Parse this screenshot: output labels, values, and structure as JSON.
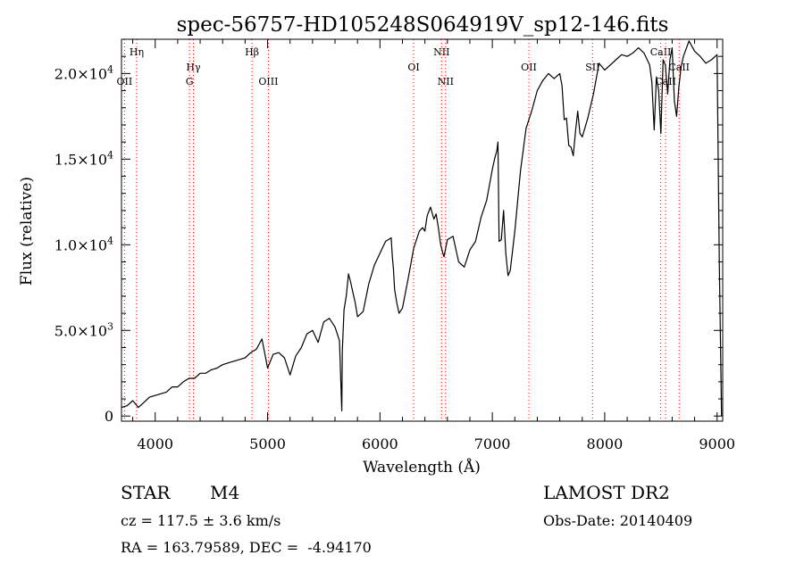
{
  "chart_data": {
    "type": "line",
    "title": "spec-56757-HD105248S064919V_sp12-146.fits",
    "xlabel": "Wavelength (Å)",
    "ylabel": "Flux (relative)",
    "xlim": [
      3700,
      9050
    ],
    "ylim": [
      -300,
      22000
    ],
    "x_ticks": [
      {
        "value": 4000,
        "label": "4000"
      },
      {
        "value": 5000,
        "label": "5000"
      },
      {
        "value": 6000,
        "label": "6000"
      },
      {
        "value": 7000,
        "label": "7000"
      },
      {
        "value": 8000,
        "label": "8000"
      },
      {
        "value": 9000,
        "label": "9000"
      }
    ],
    "y_ticks": [
      {
        "value": 0,
        "mantissa": "0",
        "exponent": ""
      },
      {
        "value": 5000,
        "mantissa": "5.0×10",
        "exponent": "3"
      },
      {
        "value": 10000,
        "mantissa": "1.0×10",
        "exponent": "4"
      },
      {
        "value": 15000,
        "mantissa": "1.5×10",
        "exponent": "4"
      },
      {
        "value": 20000,
        "mantissa": "2.0×10",
        "exponent": "4"
      }
    ],
    "line_color": "#000000",
    "marker_color": "#ff0000",
    "spectral_lines": [
      {
        "label": "Hη",
        "x": 3835,
        "row": "top"
      },
      {
        "label": "OII",
        "x": 3727,
        "row": "mid"
      },
      {
        "label": "Hγ",
        "x": 4340,
        "row": "top2"
      },
      {
        "label": "G",
        "x": 4305,
        "row": "mid"
      },
      {
        "label": "Hβ",
        "x": 4861,
        "row": "top"
      },
      {
        "label": "OIII",
        "x": 5007,
        "row": "mid"
      },
      {
        "label": "OI",
        "x": 6300,
        "row": "top2"
      },
      {
        "label": "NII",
        "x": 6548,
        "row": "top"
      },
      {
        "label": "NII",
        "x": 6584,
        "row": "mid"
      },
      {
        "label": "OII",
        "x": 7325,
        "row": "top2"
      },
      {
        "label": "SII",
        "x": 7892,
        "row": "top2"
      },
      {
        "label": "CaII",
        "x": 8498,
        "row": "top"
      },
      {
        "label": "CaII",
        "x": 8542,
        "row": "mid"
      },
      {
        "label": "CaII",
        "x": 8662,
        "row": "top2"
      }
    ],
    "series": [
      {
        "x": [
          3700,
          3750,
          3800,
          3850,
          3900,
          3950,
          4000,
          4050,
          4100,
          4150,
          4200,
          4250,
          4300,
          4350,
          4400,
          4450,
          4500,
          4550,
          4600,
          4650,
          4700,
          4750,
          4800,
          4850,
          4900,
          4950,
          4980,
          5000,
          5050,
          5100,
          5150,
          5200,
          5250,
          5300,
          5350,
          5400,
          5450,
          5500,
          5550,
          5600,
          5620,
          5640,
          5660,
          5665,
          5680,
          5700,
          5720,
          5740,
          5760,
          5780,
          5800,
          5850,
          5900,
          5950,
          6000,
          6050,
          6100,
          6110,
          6120,
          6130,
          6150,
          6170,
          6200,
          6250,
          6300,
          6350,
          6380,
          6400,
          6420,
          6450,
          6480,
          6500,
          6520,
          6540,
          6560,
          6570,
          6600,
          6650,
          6700,
          6750,
          6800,
          6850,
          6900,
          6950,
          7000,
          7020,
          7040,
          7050,
          7060,
          7080,
          7100,
          7120,
          7140,
          7160,
          7200,
          7250,
          7300,
          7350,
          7400,
          7450,
          7500,
          7550,
          7600,
          7620,
          7640,
          7660,
          7680,
          7700,
          7720,
          7740,
          7760,
          7780,
          7800,
          7850,
          7900,
          7950,
          8000,
          8050,
          8100,
          8150,
          8200,
          8250,
          8300,
          8350,
          8400,
          8420,
          8440,
          8460,
          8480,
          8500,
          8520,
          8540,
          8560,
          8580,
          8600,
          8620,
          8640,
          8660,
          8680,
          8700,
          8750,
          8800,
          8850,
          8900,
          8950,
          9000,
          9020,
          9040
        ],
        "y": [
          500,
          600,
          900,
          500,
          800,
          1100,
          1200,
          1300,
          1400,
          1700,
          1700,
          2000,
          2200,
          2200,
          2500,
          2500,
          2700,
          2800,
          3000,
          3100,
          3200,
          3300,
          3400,
          3700,
          3900,
          4500,
          3500,
          2800,
          3600,
          3700,
          3400,
          2400,
          3500,
          4000,
          4800,
          5000,
          4300,
          5500,
          5700,
          5200,
          4800,
          4400,
          300,
          3800,
          6200,
          7000,
          8300,
          7800,
          7200,
          6600,
          5800,
          6100,
          7700,
          8800,
          9500,
          10200,
          10400,
          9300,
          8600,
          7400,
          6600,
          6000,
          6300,
          8000,
          9800,
          10800,
          11000,
          10800,
          11700,
          12200,
          11500,
          11800,
          11000,
          10000,
          9500,
          9300,
          10300,
          10500,
          9000,
          8700,
          9700,
          10200,
          11600,
          12600,
          14400,
          15000,
          15500,
          16000,
          10200,
          10300,
          12000,
          9500,
          8200,
          8500,
          10800,
          14300,
          16800,
          17800,
          19000,
          19600,
          20000,
          19700,
          20000,
          19300,
          17300,
          17400,
          15800,
          15700,
          15200,
          16600,
          17800,
          16500,
          16300,
          17400,
          18800,
          20600,
          20200,
          20500,
          20800,
          21100,
          21000,
          21200,
          21500,
          21200,
          20500,
          19500,
          16700,
          19800,
          19000,
          16500,
          20800,
          20500,
          18800,
          20800,
          21500,
          18400,
          17500,
          19200,
          20400,
          21000,
          21900,
          21300,
          21000,
          20600,
          20800,
          21100,
          9000,
          0
        ]
      }
    ]
  },
  "info": {
    "obj_class": "STAR",
    "subclass": "M4",
    "survey": "LAMOST DR2",
    "cz": "cz = 117.5 ± 3.6 km/s",
    "obs_date": "Obs-Date: 20140409",
    "radec": "RA = 163.79589, DEC =  -4.94170"
  }
}
